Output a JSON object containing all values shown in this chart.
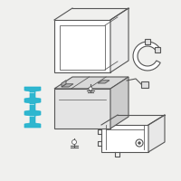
{
  "bg_color": "#f0f0ee",
  "highlight_color": "#1ab0cc",
  "line_color": "#555555",
  "line_width": 0.8,
  "fig_width": 2.0,
  "fig_height": 2.0,
  "dpi": 100,
  "box_front": "#ffffff",
  "box_side": "#e8e8e8",
  "bat_top": "#e0e0e0",
  "bat_front": "#d8d8d8"
}
